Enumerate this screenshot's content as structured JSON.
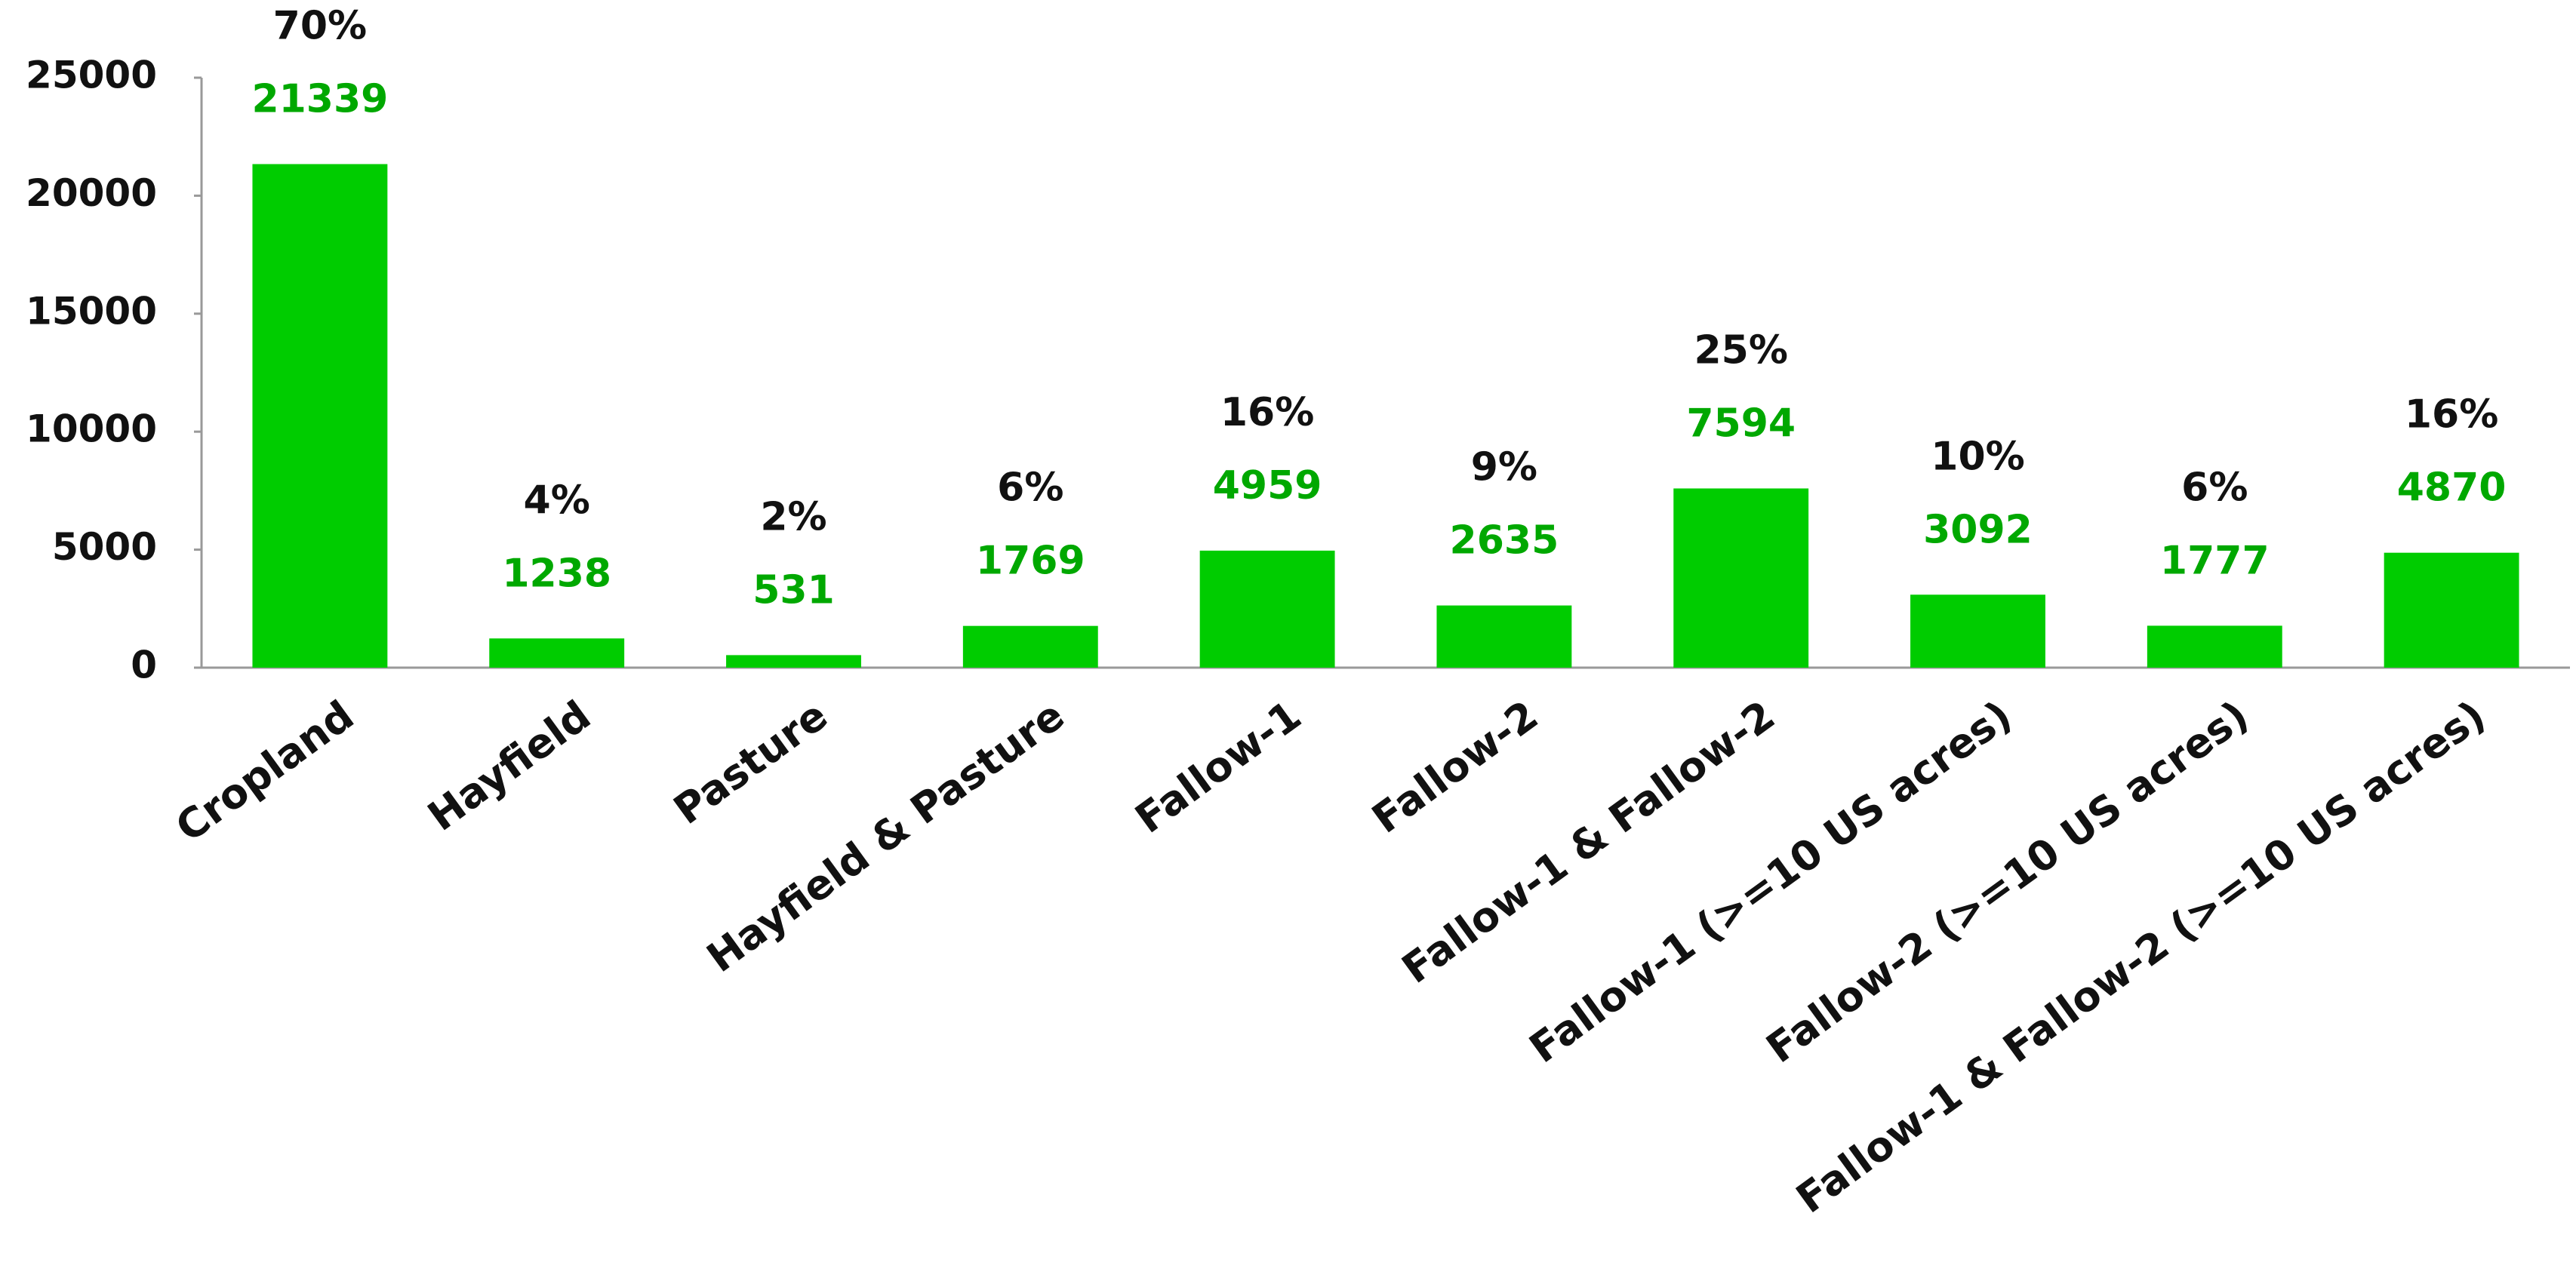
{
  "chart_data": {
    "type": "bar",
    "categories": [
      "Cropland",
      "Hayfield",
      "Pasture",
      "Hayfield & Pasture",
      "Fallow-1",
      "Fallow-2",
      "Fallow-1 & Fallow-2",
      "Fallow-1 (>=10 US acres)",
      "Fallow-2 (>=10 US acres)",
      "Fallow-1 & Fallow-2 (>=10 US acres)"
    ],
    "values": [
      21339,
      1238,
      531,
      1769,
      4959,
      2635,
      7594,
      3092,
      1777,
      4870
    ],
    "percent_labels": [
      "70%",
      "4%",
      "2%",
      "6%",
      "16%",
      "9%",
      "25%",
      "10%",
      "6%",
      "16%"
    ],
    "color": "#00cc00",
    "value_label_color": "#00a800",
    "ylim": [
      0,
      25000
    ],
    "yticks": [
      0,
      5000,
      10000,
      15000,
      20000,
      25000
    ],
    "grid": false
  }
}
